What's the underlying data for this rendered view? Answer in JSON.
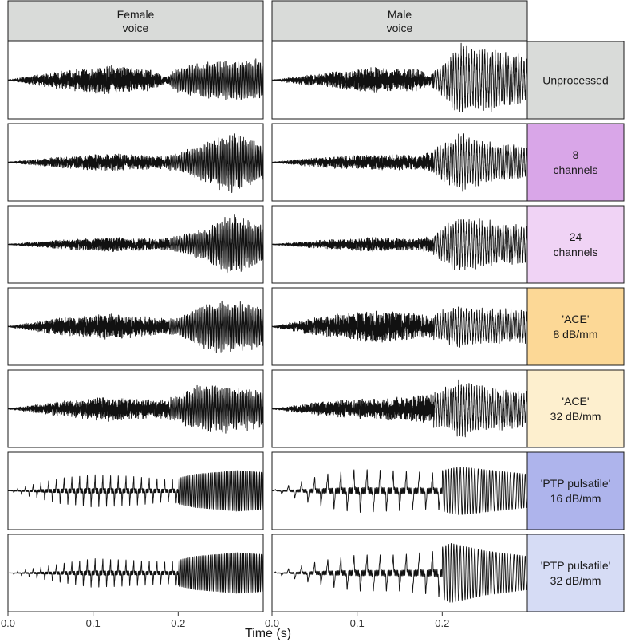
{
  "chart_data": {
    "type": "line",
    "x_axis": {
      "label": "Time (s)",
      "range": [
        0.0,
        0.3
      ],
      "ticks": [
        0.0,
        0.1,
        0.2
      ],
      "tick_labels": [
        "0.0",
        "0.1",
        "0.2"
      ]
    },
    "y_axis": {
      "label": "",
      "ticks": []
    },
    "grid": false,
    "columns": [
      {
        "id": "female",
        "header_lines": [
          "Female",
          "voice"
        ]
      },
      {
        "id": "male",
        "header_lines": [
          "Male",
          "voice"
        ]
      }
    ],
    "rows": [
      {
        "id": "unprocessed",
        "label_lines": [
          "Unprocessed"
        ],
        "strip_color": "#d9dbd9",
        "style": "noisy",
        "envelope": {
          "female": [
            [
              0.0,
              0.01
            ],
            [
              0.06,
              0.25
            ],
            [
              0.12,
              0.4
            ],
            [
              0.17,
              0.28
            ],
            [
              0.185,
              0.1
            ],
            [
              0.2,
              0.3
            ],
            [
              0.24,
              0.45
            ],
            [
              0.29,
              0.5
            ],
            [
              0.3,
              0.45
            ]
          ],
          "male": [
            [
              0.0,
              0.01
            ],
            [
              0.06,
              0.2
            ],
            [
              0.12,
              0.35
            ],
            [
              0.17,
              0.3
            ],
            [
              0.185,
              0.15
            ],
            [
              0.2,
              0.35
            ],
            [
              0.22,
              0.85
            ],
            [
              0.26,
              0.7
            ],
            [
              0.3,
              0.55
            ]
          ]
        }
      },
      {
        "id": "8ch",
        "label_lines": [
          "8",
          "channels"
        ],
        "strip_color": "#d9a6e8",
        "style": "noisy",
        "envelope": {
          "female": [
            [
              0.0,
              0.01
            ],
            [
              0.06,
              0.15
            ],
            [
              0.12,
              0.25
            ],
            [
              0.17,
              0.18
            ],
            [
              0.2,
              0.2
            ],
            [
              0.24,
              0.55
            ],
            [
              0.26,
              0.7
            ],
            [
              0.3,
              0.45
            ]
          ],
          "male": [
            [
              0.0,
              0.01
            ],
            [
              0.06,
              0.15
            ],
            [
              0.12,
              0.22
            ],
            [
              0.17,
              0.2
            ],
            [
              0.19,
              0.3
            ],
            [
              0.22,
              0.7
            ],
            [
              0.25,
              0.5
            ],
            [
              0.3,
              0.4
            ]
          ]
        }
      },
      {
        "id": "24ch",
        "label_lines": [
          "24",
          "channels"
        ],
        "strip_color": "#f0d3f5",
        "style": "noisy",
        "envelope": {
          "female": [
            [
              0.0,
              0.01
            ],
            [
              0.06,
              0.12
            ],
            [
              0.12,
              0.2
            ],
            [
              0.17,
              0.15
            ],
            [
              0.2,
              0.18
            ],
            [
              0.24,
              0.45
            ],
            [
              0.26,
              0.75
            ],
            [
              0.3,
              0.45
            ]
          ],
          "male": [
            [
              0.0,
              0.01
            ],
            [
              0.06,
              0.12
            ],
            [
              0.12,
              0.2
            ],
            [
              0.17,
              0.15
            ],
            [
              0.19,
              0.25
            ],
            [
              0.22,
              0.7
            ],
            [
              0.25,
              0.55
            ],
            [
              0.3,
              0.45
            ]
          ]
        }
      },
      {
        "id": "ace8",
        "label_lines": [
          "'ACE'",
          "8 dB/mm"
        ],
        "strip_color": "#fcd896",
        "style": "noisy",
        "envelope": {
          "female": [
            [
              0.0,
              0.01
            ],
            [
              0.06,
              0.25
            ],
            [
              0.12,
              0.35
            ],
            [
              0.17,
              0.25
            ],
            [
              0.2,
              0.2
            ],
            [
              0.23,
              0.55
            ],
            [
              0.26,
              0.6
            ],
            [
              0.3,
              0.5
            ]
          ],
          "male": [
            [
              0.0,
              0.01
            ],
            [
              0.06,
              0.3
            ],
            [
              0.12,
              0.45
            ],
            [
              0.17,
              0.35
            ],
            [
              0.19,
              0.3
            ],
            [
              0.22,
              0.5
            ],
            [
              0.25,
              0.4
            ],
            [
              0.3,
              0.4
            ]
          ]
        }
      },
      {
        "id": "ace32",
        "label_lines": [
          "'ACE'",
          "32 dB/mm"
        ],
        "strip_color": "#fdefce",
        "style": "noisy",
        "envelope": {
          "female": [
            [
              0.0,
              0.01
            ],
            [
              0.06,
              0.2
            ],
            [
              0.12,
              0.35
            ],
            [
              0.17,
              0.25
            ],
            [
              0.2,
              0.3
            ],
            [
              0.23,
              0.6
            ],
            [
              0.27,
              0.5
            ],
            [
              0.3,
              0.45
            ]
          ],
          "male": [
            [
              0.0,
              0.01
            ],
            [
              0.06,
              0.2
            ],
            [
              0.12,
              0.3
            ],
            [
              0.17,
              0.35
            ],
            [
              0.2,
              0.45
            ],
            [
              0.22,
              0.7
            ],
            [
              0.26,
              0.5
            ],
            [
              0.3,
              0.45
            ]
          ]
        }
      },
      {
        "id": "ptp16",
        "label_lines": [
          "'PTP pulsatile'",
          "16 dB/mm"
        ],
        "strip_color": "#aeb4ec",
        "style": "pulse",
        "envelope": {
          "female": [
            [
              0.0,
              0.01
            ],
            [
              0.06,
              0.35
            ],
            [
              0.1,
              0.45
            ],
            [
              0.15,
              0.4
            ],
            [
              0.19,
              0.3
            ],
            [
              0.22,
              0.45
            ],
            [
              0.27,
              0.55
            ],
            [
              0.3,
              0.5
            ]
          ],
          "male": [
            [
              0.0,
              0.01
            ],
            [
              0.06,
              0.45
            ],
            [
              0.1,
              0.6
            ],
            [
              0.15,
              0.55
            ],
            [
              0.19,
              0.5
            ],
            [
              0.22,
              0.65
            ],
            [
              0.26,
              0.55
            ],
            [
              0.3,
              0.45
            ]
          ]
        }
      },
      {
        "id": "ptp32",
        "label_lines": [
          "'PTP pulsatile'",
          "32 dB/mm"
        ],
        "strip_color": "#d6dcf5",
        "style": "pulse",
        "envelope": {
          "female": [
            [
              0.0,
              0.01
            ],
            [
              0.06,
              0.25
            ],
            [
              0.1,
              0.4
            ],
            [
              0.15,
              0.35
            ],
            [
              0.19,
              0.3
            ],
            [
              0.22,
              0.45
            ],
            [
              0.27,
              0.55
            ],
            [
              0.3,
              0.5
            ]
          ],
          "male": [
            [
              0.0,
              0.01
            ],
            [
              0.06,
              0.35
            ],
            [
              0.1,
              0.5
            ],
            [
              0.15,
              0.5
            ],
            [
              0.19,
              0.6
            ],
            [
              0.21,
              0.8
            ],
            [
              0.25,
              0.6
            ],
            [
              0.3,
              0.45
            ]
          ]
        }
      }
    ]
  }
}
